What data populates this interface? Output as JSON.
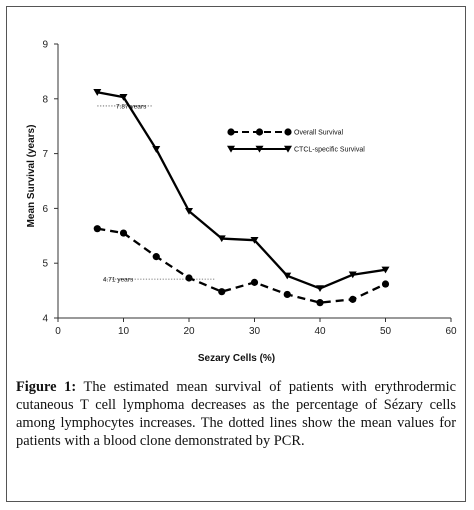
{
  "chart_data": {
    "type": "line",
    "xlabel": "Sezary Cells (%)",
    "ylabel": "Mean Survival (years)",
    "xlim": [
      0,
      60
    ],
    "ylim": [
      4,
      9
    ],
    "xticks": [
      "0",
      "10",
      "20",
      "30",
      "40",
      "50",
      "60"
    ],
    "yticks": [
      "4",
      "5",
      "6",
      "7",
      "8",
      "9"
    ],
    "grid": false,
    "legend_position": "upper-right",
    "series": [
      {
        "name": "Overall Survival",
        "style": "dashed",
        "marker": "circle",
        "x": [
          6,
          10,
          15,
          20,
          25,
          30,
          35,
          40,
          45,
          50
        ],
        "y": [
          5.63,
          5.55,
          5.12,
          4.73,
          4.48,
          4.65,
          4.43,
          4.28,
          4.34,
          4.62
        ]
      },
      {
        "name": "CTCL-specific Survival",
        "style": "solid",
        "marker": "triangle-down",
        "x": [
          6,
          10,
          15,
          20,
          25,
          30,
          35,
          40,
          45,
          50
        ],
        "y": [
          8.12,
          8.03,
          7.08,
          5.95,
          5.45,
          5.42,
          4.77,
          4.54,
          4.79,
          4.88
        ]
      }
    ],
    "annotations": [
      {
        "text": "7.87 years",
        "x_from": 6,
        "x_to": 14.5,
        "y": 7.87
      },
      {
        "text": "4.71 years",
        "x_from": 7,
        "x_to": 24,
        "y": 4.71
      }
    ]
  },
  "caption": {
    "label": "Figure 1:",
    "text": "The estimated mean survival of patients with erythrodermic cutaneous T cell lymphoma decreases as the percentage of Sézary cells among lymphocytes increases. The dotted lines show the mean values for patients with a blood clone demonstrated by PCR."
  },
  "colors": {
    "line": "#000000",
    "annotation": "#555555"
  }
}
